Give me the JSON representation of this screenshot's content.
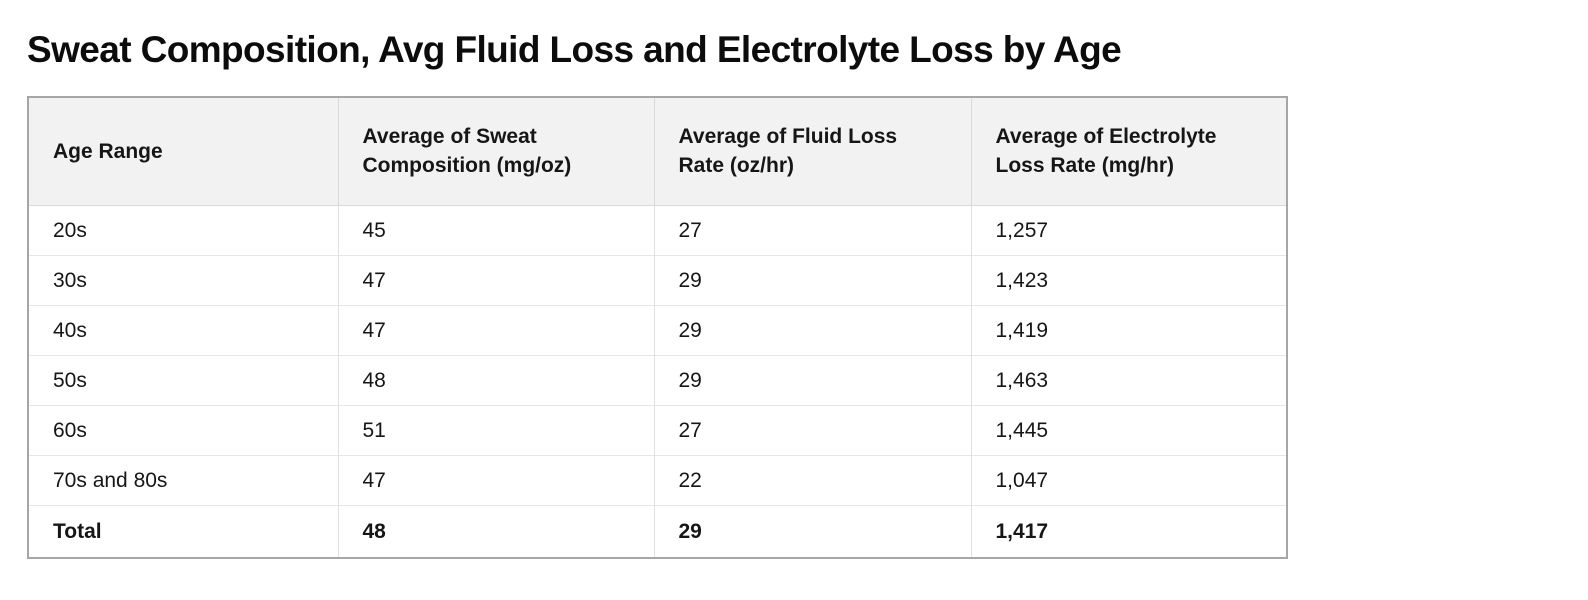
{
  "page": {
    "title": "Sweat Composition, Avg Fluid Loss and Electrolyte Loss by Age"
  },
  "chart_data": {
    "type": "table",
    "title": "Sweat Composition, Avg Fluid Loss and Electrolyte Loss by Age",
    "columns": [
      "Age Range",
      "Average of Sweat Composition (mg/oz)",
      "Average of Fluid Loss Rate (oz/hr)",
      "Average of Electrolyte Loss Rate (mg/hr)"
    ],
    "rows": [
      [
        "20s",
        "45",
        "27",
        "1,257"
      ],
      [
        "30s",
        "47",
        "29",
        "1,423"
      ],
      [
        "40s",
        "47",
        "29",
        "1,419"
      ],
      [
        "50s",
        "48",
        "29",
        "1,463"
      ],
      [
        "60s",
        "51",
        "27",
        "1,445"
      ],
      [
        "70s and 80s",
        "47",
        "22",
        "1,047"
      ]
    ],
    "total_row": [
      "Total",
      "48",
      "29",
      "1,417"
    ],
    "series": [
      {
        "name": "Average of Sweat Composition (mg/oz)",
        "values": [
          45,
          47,
          47,
          48,
          51,
          47
        ],
        "total": 48
      },
      {
        "name": "Average of Fluid Loss Rate (oz/hr)",
        "values": [
          27,
          29,
          29,
          29,
          27,
          22
        ],
        "total": 29
      },
      {
        "name": "Average of Electrolyte Loss Rate (mg/hr)",
        "values": [
          1257,
          1423,
          1419,
          1463,
          1445,
          1047
        ],
        "total": 1417
      }
    ],
    "categories": [
      "20s",
      "30s",
      "40s",
      "50s",
      "60s",
      "70s and 80s"
    ]
  },
  "colors": {
    "background": "#ffffff",
    "title_text": "#0c0c0c",
    "body_text": "#161616",
    "header_background": "#f2f2f3",
    "outer_border": "#a6a6a6",
    "header_border": "#d9d9d9",
    "row_border": "#e6e6e6",
    "column_border": "#e0e0e0"
  }
}
